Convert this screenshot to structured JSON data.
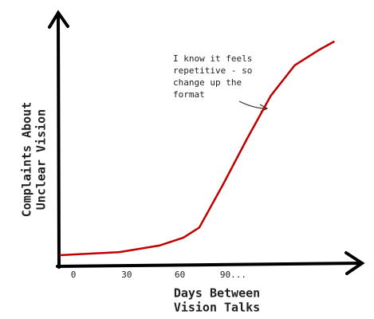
{
  "chart_data": {
    "type": "line",
    "x_label": [
      "Days Between",
      "Vision Talks"
    ],
    "y_label": [
      "Complaints About",
      "Unclear Vision"
    ],
    "annotation": [
      "I know it feels",
      "repetitive - so",
      "change up the",
      "format"
    ],
    "x": [
      -7.6,
      26,
      48.4,
      61.9,
      70.9,
      84.3,
      97.8,
      111.2,
      124.7,
      138,
      147
    ],
    "values": [
      4.1,
      5.3,
      7.9,
      11,
      15,
      32,
      50,
      67,
      79,
      84.9,
      88.4
    ],
    "color": "#c00000",
    "xlim": [
      -9,
      163
    ],
    "xticks": [
      0,
      30,
      60,
      {
        "value": 90,
        "label": "90..."
      }
    ],
    "ylim": [
      0,
      100
    ],
    "grid": false
  }
}
